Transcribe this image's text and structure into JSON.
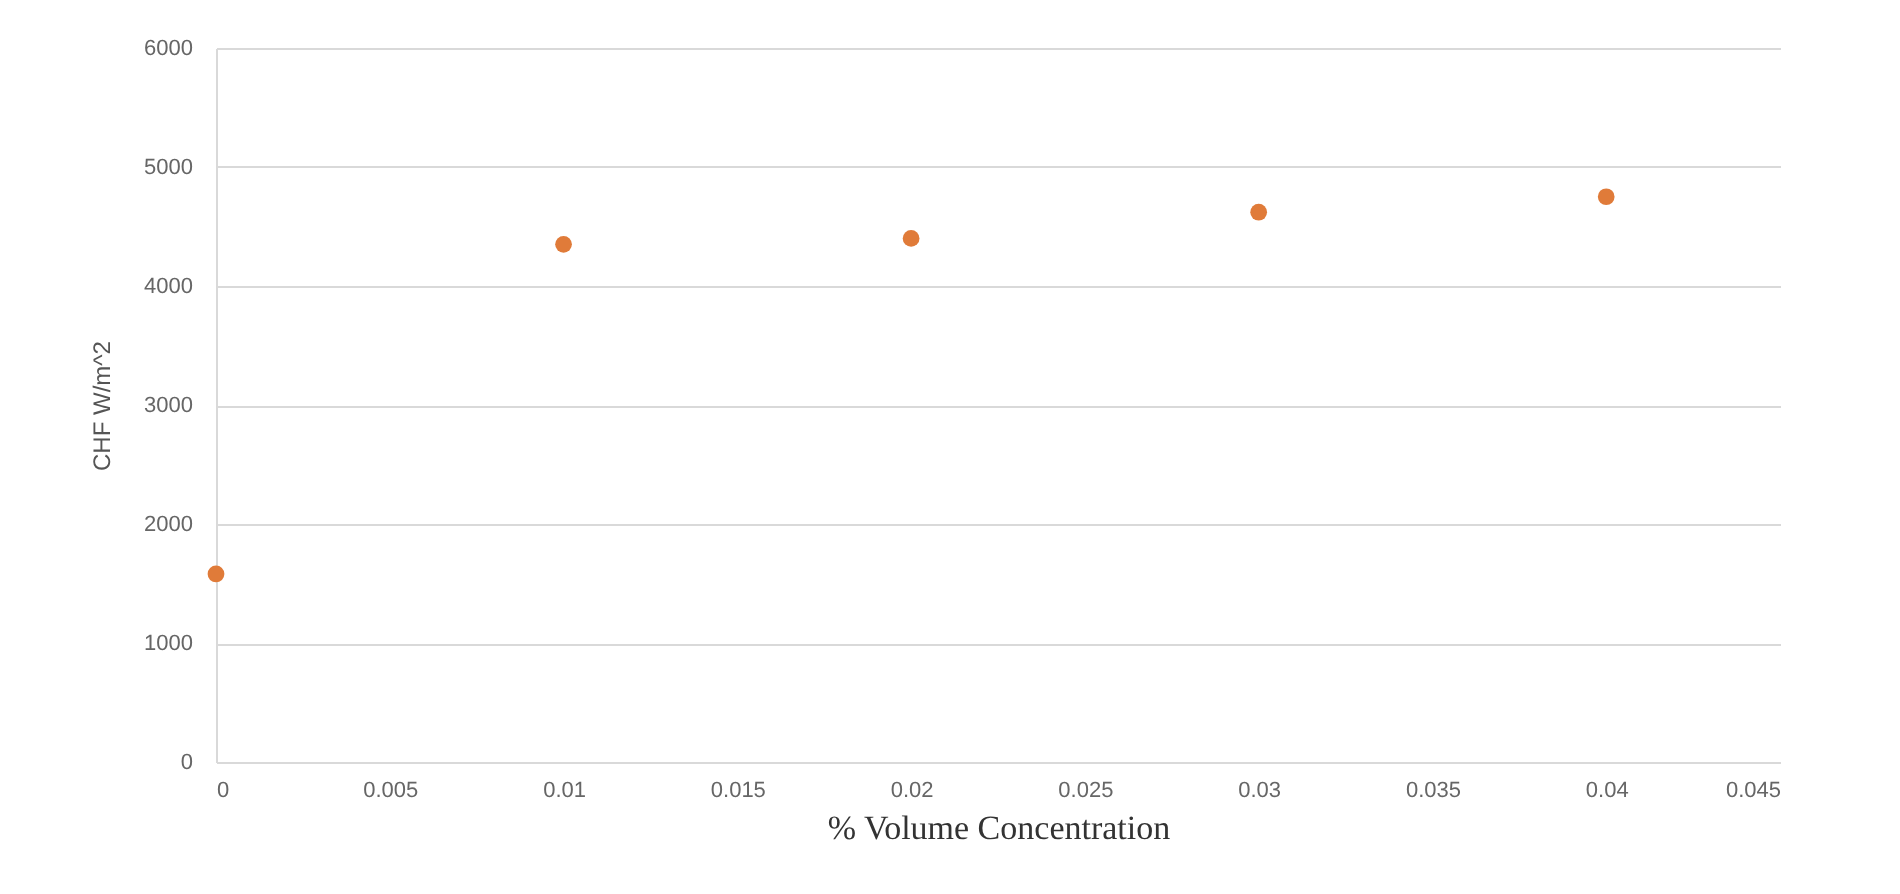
{
  "chart_data": {
    "type": "scatter",
    "xlabel": "% Volume  Concentration",
    "ylabel": "CHF W/m^2",
    "x": [
      0,
      0.01,
      0.02,
      0.03,
      0.04
    ],
    "series": [
      {
        "color": "#e07b39",
        "values": [
          1580,
          4350,
          4400,
          4620,
          4750
        ]
      }
    ],
    "xlim": [
      0,
      0.045
    ],
    "xticks": [
      0,
      0.005,
      0.01,
      0.015,
      0.02,
      0.025,
      0.03,
      0.035,
      0.04,
      0.045
    ],
    "ylim": [
      0,
      6000
    ],
    "yticks": [
      0,
      1000,
      2000,
      3000,
      4000,
      5000,
      6000
    ],
    "grid": "y",
    "marker": "circle",
    "legend": false
  }
}
